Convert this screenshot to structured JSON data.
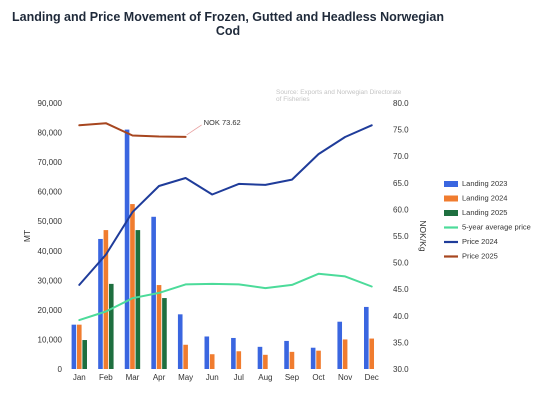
{
  "chart_data": {
    "type": "bar",
    "title_lines": [
      "Landing and Price Movement of Frozen, Gutted and Headless Norwegian",
      "Cod"
    ],
    "source_lines": [
      "Source: Exports and Norwegian Directorate",
      "of Fisheries"
    ],
    "categories": [
      "Jan",
      "Feb",
      "Mar",
      "Apr",
      "May",
      "Jun",
      "Jul",
      "Aug",
      "Sep",
      "Oct",
      "Nov",
      "Dec"
    ],
    "ylabel_left": "MT",
    "ylabel_right": "NOK/Kg",
    "ylim_left": [
      0,
      90000
    ],
    "ylim_right": [
      30,
      80
    ],
    "left_ticks": [
      "0",
      "10,000",
      "20,000",
      "30,000",
      "40,000",
      "50,000",
      "60,000",
      "70,000",
      "80,000",
      "90,000"
    ],
    "right_ticks": [
      "30.0",
      "35.0",
      "40.0",
      "45.0",
      "50.0",
      "55.0",
      "60.0",
      "65.0",
      "70.0",
      "75.0",
      "80.0"
    ],
    "bar_series": [
      {
        "name": "Landing 2023",
        "color": "#3a66e0",
        "values": [
          15000,
          44000,
          81000,
          51500,
          18500,
          11000,
          10500,
          7500,
          9500,
          7200,
          16000,
          21000
        ]
      },
      {
        "name": "Landing 2024",
        "color": "#f07c2f",
        "values": [
          15000,
          47000,
          55800,
          28400,
          8200,
          5000,
          6000,
          4800,
          5800,
          6200,
          10000,
          10300
        ]
      },
      {
        "name": "Landing 2025",
        "color": "#1e6f3f",
        "values": [
          9800,
          28800,
          47000,
          24000,
          null,
          null,
          null,
          null,
          null,
          null,
          null,
          null
        ]
      }
    ],
    "line_series": [
      {
        "name": "5-year average price",
        "color": "#4cdb9a",
        "values": [
          39.2,
          40.8,
          43.3,
          44.3,
          45.9,
          46.0,
          45.9,
          45.2,
          45.8,
          47.9,
          47.4,
          45.5
        ]
      },
      {
        "name": "Price 2024",
        "color": "#1f3c9a",
        "values": [
          45.8,
          51.5,
          59.5,
          64.4,
          65.9,
          62.8,
          64.8,
          64.6,
          65.6,
          70.4,
          73.6,
          75.8
        ]
      },
      {
        "name": "Price 2025",
        "color": "#a7461f",
        "values": [
          75.8,
          76.2,
          73.9,
          73.7,
          73.62,
          null,
          null,
          null,
          null,
          null,
          null,
          null
        ]
      }
    ],
    "annotation": {
      "text": "NOK 73.62",
      "series": "Price 2025",
      "index": 4
    },
    "legend_position": "right",
    "grid": false
  }
}
